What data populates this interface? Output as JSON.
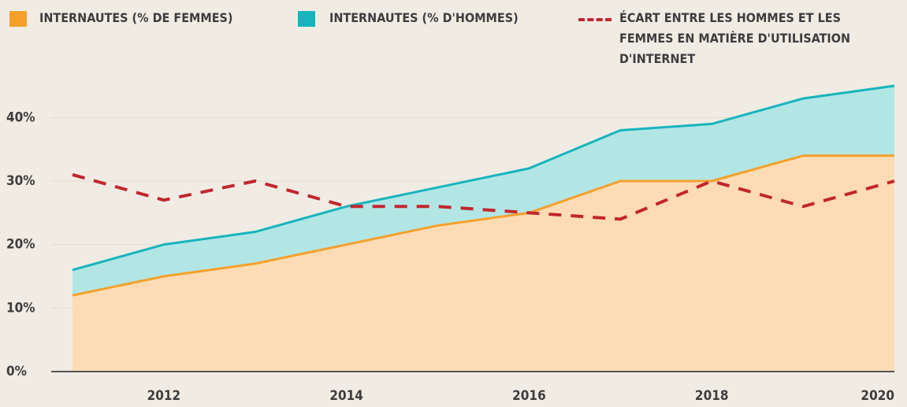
{
  "chart_data": {
    "type": "line",
    "x": [
      2011,
      2012,
      2013,
      2014,
      2015,
      2016,
      2017,
      2018,
      2019,
      2020
    ],
    "series": [
      {
        "name": "INTERNAUTES (% DE FEMMES)",
        "color": "#f5a02a",
        "fill": "#fddcb5",
        "style": "area",
        "values": [
          12,
          15,
          17,
          20,
          23,
          25,
          30,
          30,
          34,
          34
        ]
      },
      {
        "name": "INTERNAUTES (% D'HOMMES)",
        "color": "#17b4bd",
        "fill": "#b2e6e5",
        "style": "area",
        "values": [
          16,
          20,
          22,
          26,
          29,
          32,
          38,
          39,
          43,
          45
        ]
      },
      {
        "name": "ÉCART ENTRE LES HOMMES ET LES FEMMES EN MATIÈRE D'UTILISATION D'INTERNET",
        "color": "#c1272d",
        "style": "dashed",
        "values": [
          31,
          27,
          30,
          26,
          26,
          25,
          24,
          30,
          26,
          30
        ]
      }
    ],
    "xlim": [
      2011,
      2020
    ],
    "xticks": [
      2012,
      2014,
      2016,
      2018,
      2020
    ],
    "ylim": [
      0,
      45
    ],
    "yticks": [
      {
        "value": 0,
        "label": "0%"
      },
      {
        "value": 10,
        "label": "10%"
      },
      {
        "value": 20,
        "label": "20%"
      },
      {
        "value": 30,
        "label": "30%"
      },
      {
        "value": 40,
        "label": "40%"
      }
    ],
    "grid": true,
    "legend": "top"
  }
}
